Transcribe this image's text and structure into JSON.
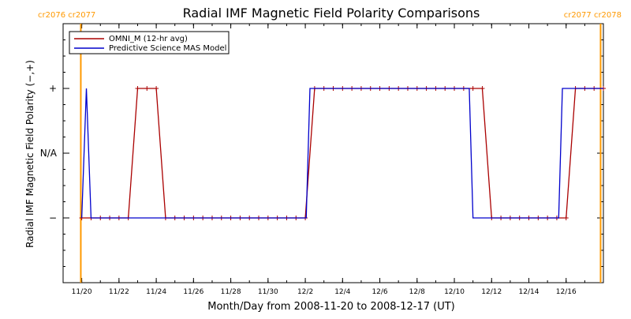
{
  "chart_data": {
    "type": "line",
    "title": "Radial IMF Magnetic Field Polarity Comparisons",
    "xlabel": "Month/Day from 2008-11-20 to 2008-12-17 (UT)",
    "ylabel": "Radial IMF Magnetic Field Polarity (−,+)",
    "xlim": [
      "2008-11-19",
      "2008-12-18"
    ],
    "ylim": [
      -2,
      2
    ],
    "x_ticks": [
      "11/20",
      "11/22",
      "11/24",
      "11/26",
      "11/28",
      "11/30",
      "12/2",
      "12/4",
      "12/6",
      "12/8",
      "12/10",
      "12/12",
      "12/14",
      "12/16"
    ],
    "y_ticks": [
      {
        "value": -1,
        "label": "−"
      },
      {
        "value": 0,
        "label": "N/A"
      },
      {
        "value": 1,
        "label": "+"
      }
    ],
    "carrington_markers": [
      {
        "x": "2008-11-19.95",
        "labels": [
          "cr2076",
          "cr2077"
        ],
        "side": "left"
      },
      {
        "x": "2008-12-17.85",
        "labels": [
          "cr2077",
          "cr2078"
        ],
        "side": "right"
      }
    ],
    "legend": {
      "placement": "top-left",
      "entries": [
        "OMNI_M (12-hr avg)",
        "Predictive Science MAS Model"
      ]
    },
    "colors": {
      "omni": "#aa0000",
      "model": "#0000cc",
      "carrington": "#ff9900",
      "axes": "#000000"
    },
    "series": [
      {
        "name": "OMNI_M (12-hr avg)",
        "x_days_label": "days after 2008-11-20",
        "points": [
          [
            0,
            -1
          ],
          [
            0.5,
            -1
          ],
          [
            1,
            -1
          ],
          [
            1.5,
            -1
          ],
          [
            2,
            -1
          ],
          [
            2.5,
            -1
          ],
          [
            3,
            1
          ],
          [
            3.5,
            1
          ],
          [
            4,
            1
          ],
          [
            4.5,
            -1
          ],
          [
            5,
            -1
          ],
          [
            5.5,
            -1
          ],
          [
            6,
            -1
          ],
          [
            6.5,
            -1
          ],
          [
            7,
            -1
          ],
          [
            7.5,
            -1
          ],
          [
            8,
            -1
          ],
          [
            8.5,
            -1
          ],
          [
            9,
            -1
          ],
          [
            9.5,
            -1
          ],
          [
            10,
            -1
          ],
          [
            10.5,
            -1
          ],
          [
            11,
            -1
          ],
          [
            11.5,
            -1
          ],
          [
            12,
            -1
          ],
          [
            12.5,
            1
          ],
          [
            13,
            1
          ],
          [
            13.5,
            1
          ],
          [
            14,
            1
          ],
          [
            14.5,
            1
          ],
          [
            15,
            1
          ],
          [
            15.5,
            1
          ],
          [
            16,
            1
          ],
          [
            16.5,
            1
          ],
          [
            17,
            1
          ],
          [
            17.5,
            1
          ],
          [
            18,
            1
          ],
          [
            18.5,
            1
          ],
          [
            19,
            1
          ],
          [
            19.5,
            1
          ],
          [
            20,
            1
          ],
          [
            20.5,
            1
          ],
          [
            21,
            1
          ],
          [
            21.5,
            1
          ],
          [
            22,
            -1
          ],
          [
            22.5,
            -1
          ],
          [
            23,
            -1
          ],
          [
            23.5,
            -1
          ],
          [
            24,
            -1
          ],
          [
            24.5,
            -1
          ],
          [
            25,
            -1
          ],
          [
            25.5,
            -1
          ],
          [
            26,
            -1
          ],
          [
            26.5,
            1
          ],
          [
            27,
            1
          ],
          [
            27.5,
            1
          ],
          [
            28,
            1
          ]
        ]
      },
      {
        "name": "Predictive Science MAS Model",
        "points": [
          [
            0,
            -1
          ],
          [
            0.25,
            1
          ],
          [
            0.5,
            -1
          ],
          [
            1,
            -1
          ],
          [
            12.05,
            -1
          ],
          [
            12.25,
            1
          ],
          [
            20.8,
            1
          ],
          [
            21.0,
            -1
          ],
          [
            25.6,
            -1
          ],
          [
            25.8,
            1
          ],
          [
            28.0,
            1
          ]
        ]
      }
    ]
  }
}
